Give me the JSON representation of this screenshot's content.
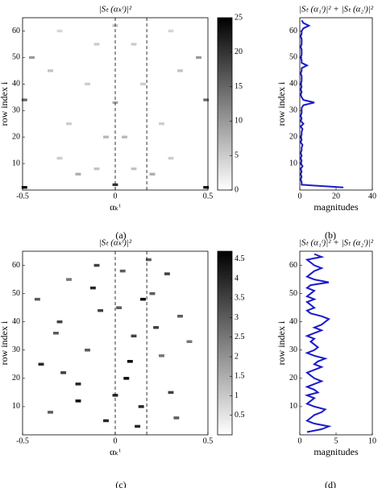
{
  "chart_data": [
    {
      "type": "heatmap",
      "title": "|Sₜ (αₖᵗ)|²",
      "x_label": "αₖᵗ",
      "y_label": "row index i",
      "caption": "(a)",
      "xlim": [
        -0.5,
        0.5
      ],
      "xticks": [
        -0.5,
        0,
        0.5
      ],
      "ylim": [
        0,
        65
      ],
      "yticks": [
        10,
        20,
        30,
        40,
        50,
        60
      ],
      "dashed_lines": [
        0,
        0.17
      ],
      "cells": {
        "x": [
          -0.49,
          0.49,
          0,
          -0.49,
          0.49,
          -0.45,
          0.45,
          -0.2,
          0.2,
          -0.1,
          0.1,
          -0.3,
          0.3,
          -0.05,
          0.05,
          -0.25,
          0.25,
          -0.15,
          0.15,
          -0.35,
          0.35,
          -0.1,
          0.1,
          -0.3,
          0.3,
          0,
          0
        ],
        "y": [
          1,
          1,
          2,
          34,
          34,
          50,
          50,
          6,
          6,
          8,
          8,
          12,
          12,
          20,
          20,
          25,
          25,
          40,
          40,
          45,
          45,
          55,
          55,
          60,
          60,
          62,
          33
        ],
        "values": [
          25,
          25,
          20,
          15,
          15,
          10,
          10,
          8,
          8,
          6,
          6,
          5,
          5,
          7,
          7,
          5,
          5,
          5,
          5,
          6,
          6,
          5,
          5,
          4,
          4,
          6,
          8
        ]
      },
      "colorbar": {
        "lim": [
          0,
          25
        ],
        "ticks": [
          0,
          5,
          10,
          15,
          20,
          25
        ]
      }
    },
    {
      "type": "line",
      "title": "|Sₜ (α₁ᵗ)|² + |Sₜ (α₂ᵗ)|²",
      "x_label": "magnitudes",
      "y_label": "row index i",
      "caption": "(b)",
      "xlim": [
        0,
        40
      ],
      "xticks": [
        0,
        20,
        40
      ],
      "ylim": [
        0,
        65
      ],
      "yticks": [
        10,
        20,
        30,
        40,
        50,
        60
      ],
      "y": [
        1,
        2,
        3,
        4,
        5,
        6,
        7,
        8,
        9,
        10,
        11,
        12,
        13,
        14,
        15,
        16,
        17,
        18,
        19,
        20,
        21,
        22,
        23,
        24,
        25,
        26,
        27,
        28,
        29,
        30,
        31,
        32,
        33,
        34,
        35,
        36,
        37,
        38,
        39,
        40,
        41,
        42,
        43,
        44,
        45,
        46,
        47,
        48,
        49,
        50,
        51,
        52,
        53,
        54,
        55,
        56,
        57,
        58,
        59,
        60,
        61,
        62,
        63,
        64
      ],
      "series": [
        {
          "color": "#1a1acc",
          "values": [
            24,
            1,
            1,
            0.5,
            1,
            0.5,
            1,
            0.5,
            1.5,
            0.5,
            1,
            0.5,
            1,
            0.5,
            1,
            1,
            1.5,
            0.5,
            1,
            0.5,
            1,
            1,
            1.5,
            0.5,
            2,
            0.5,
            1,
            0.5,
            1,
            1,
            1,
            2,
            8,
            2,
            1,
            0.5,
            1,
            0.5,
            1,
            0.5,
            1,
            1,
            1,
            0.5,
            1,
            1,
            4,
            1,
            1,
            0.5,
            1,
            1,
            1,
            0.5,
            1,
            1,
            1,
            0.5,
            1,
            1,
            2,
            5,
            2,
            1
          ]
        }
      ]
    },
    {
      "type": "heatmap",
      "title": "|Sₜ (αₖᵗ)|²",
      "x_label": "αₖᵗ",
      "y_label": "row index i",
      "caption": "(c)",
      "xlim": [
        -0.5,
        0.5
      ],
      "xticks": [
        -0.5,
        0,
        0.5
      ],
      "ylim": [
        0,
        65
      ],
      "yticks": [
        10,
        20,
        30,
        40,
        50,
        60
      ],
      "dashed_lines": [
        0,
        0.17
      ],
      "cells": {
        "x": [
          -0.4,
          -0.35,
          -0.3,
          -0.25,
          -0.2,
          -0.15,
          -0.1,
          -0.05,
          0.02,
          0.06,
          0.1,
          0.14,
          0.2,
          0.25,
          0.3,
          0.35,
          0.4,
          -0.42,
          -0.28,
          -0.12,
          0.04,
          0.12,
          0.22,
          0.33,
          -0.2,
          -0.08,
          0.08,
          0.18,
          0.28,
          -0.32,
          0.0,
          0.15
        ],
        "y": [
          25,
          8,
          40,
          55,
          12,
          30,
          60,
          5,
          45,
          20,
          35,
          10,
          50,
          28,
          15,
          42,
          33,
          48,
          22,
          52,
          58,
          3,
          38,
          6,
          18,
          44,
          26,
          62,
          57,
          36,
          14,
          48
        ],
        "values": [
          4,
          3,
          3.5,
          2.5,
          4.5,
          3,
          3.5,
          4,
          3,
          4.5,
          3.5,
          4,
          3,
          2.5,
          3.5,
          3,
          2.5,
          3,
          3.5,
          4,
          3,
          4,
          3.5,
          3,
          4,
          3.5,
          4.5,
          3,
          3.5,
          3,
          4,
          4.5
        ]
      },
      "colorbar": {
        "lim": [
          0,
          4.7
        ],
        "ticks": [
          0.5,
          1,
          1.5,
          2,
          2.5,
          3,
          3.5,
          4,
          4.5
        ]
      }
    },
    {
      "type": "line",
      "title": "|Sₜ (α₁ᵗ)|² + |Sₜ (α₂ᵗ)|²",
      "x_label": "magnitudes",
      "y_label": "row index i",
      "caption": "(d)",
      "xlim": [
        0,
        10
      ],
      "xticks": [
        0,
        5,
        10
      ],
      "ylim": [
        0,
        65
      ],
      "yticks": [
        10,
        20,
        30,
        40,
        50,
        60
      ],
      "y": [
        1,
        2,
        3,
        4,
        5,
        6,
        7,
        8,
        9,
        10,
        11,
        12,
        13,
        14,
        15,
        16,
        17,
        18,
        19,
        20,
        21,
        22,
        23,
        24,
        25,
        26,
        27,
        28,
        29,
        30,
        31,
        32,
        33,
        34,
        35,
        36,
        37,
        38,
        39,
        40,
        41,
        42,
        43,
        44,
        45,
        46,
        47,
        48,
        49,
        50,
        51,
        52,
        53,
        54,
        55,
        56,
        57,
        58,
        59,
        60,
        61,
        62,
        63,
        64
      ],
      "series": [
        {
          "color": "#1a1acc",
          "values": [
            1,
            3,
            4,
            2,
            1,
            1.5,
            2,
            3,
            3.5,
            2,
            1,
            1.5,
            2,
            1,
            2.5,
            2,
            1,
            2,
            3,
            2,
            1.5,
            1,
            2,
            3,
            2,
            2.5,
            3.5,
            2,
            1,
            2,
            2.5,
            2,
            1.5,
            2,
            1,
            2,
            3,
            2,
            3,
            3.5,
            4,
            3,
            1.5,
            1,
            2,
            1.5,
            1,
            2,
            1,
            1.5,
            2,
            1,
            1.5,
            4,
            2,
            1,
            1.5,
            2,
            3,
            2,
            1.5,
            1,
            3,
            2
          ]
        }
      ]
    }
  ]
}
